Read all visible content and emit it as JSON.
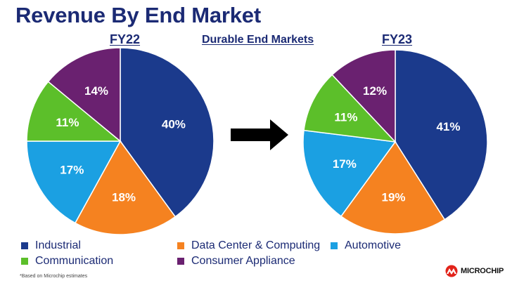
{
  "title": "Revenue By End Market",
  "subtitle": "Durable End Markets",
  "footnote": "*Based on Microchip estimates",
  "logo_text": "MICROCHIP",
  "legend": [
    {
      "label": "Industrial",
      "color": "#1b3a8c"
    },
    {
      "label": "Data Center & Computing",
      "color": "#f58220"
    },
    {
      "label": "Automotive",
      "color": "#1ba0e2"
    },
    {
      "label": "Communication",
      "color": "#5cbf2a"
    },
    {
      "label": "Consumer Appliance",
      "color": "#6a2170"
    }
  ],
  "chart_data": [
    {
      "type": "pie",
      "title": "FY22",
      "categories": [
        "Industrial",
        "Data Center & Computing",
        "Automotive",
        "Communication",
        "Consumer Appliance"
      ],
      "values": [
        40,
        18,
        17,
        11,
        14
      ],
      "labels": [
        "40%",
        "18%",
        "17%",
        "11%",
        "14%"
      ],
      "colors": [
        "#1b3a8c",
        "#f58220",
        "#1ba0e2",
        "#5cbf2a",
        "#6a2170"
      ]
    },
    {
      "type": "pie",
      "title": "FY23",
      "categories": [
        "Industrial",
        "Data Center & Computing",
        "Automotive",
        "Communication",
        "Consumer Appliance"
      ],
      "values": [
        41,
        19,
        17,
        11,
        12
      ],
      "labels": [
        "41%",
        "19%",
        "17%",
        "11%",
        "12%"
      ],
      "colors": [
        "#1b3a8c",
        "#f58220",
        "#1ba0e2",
        "#5cbf2a",
        "#6a2170"
      ]
    }
  ]
}
